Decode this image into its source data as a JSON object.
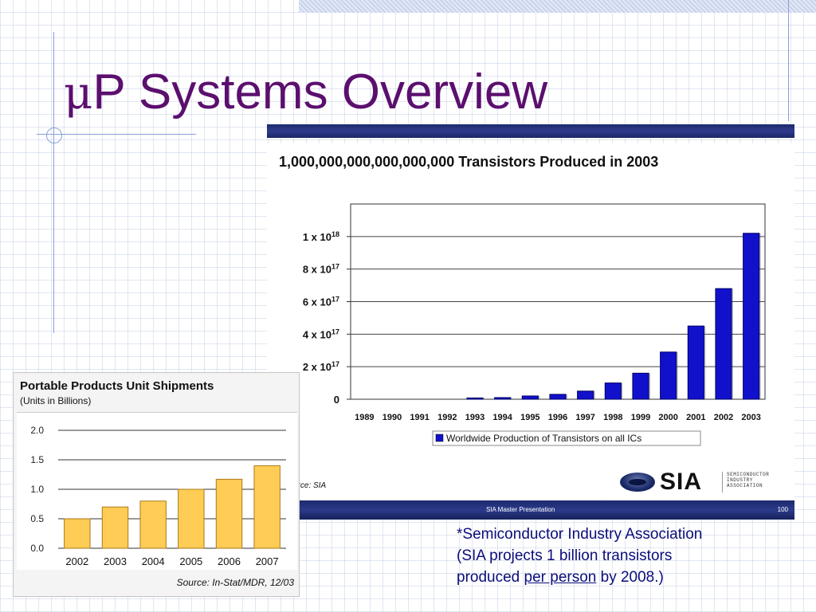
{
  "slide": {
    "title_mu": "μ",
    "title_rest": "P Systems Overview"
  },
  "sia_chart": {
    "footer_text": "SIA Master Presentation",
    "page_number": "100",
    "source": "urce:  SIA",
    "logo_word": "SIA",
    "logo_line1": "SEMICONDUCTOR",
    "logo_line2": "INDUSTRY",
    "logo_line3": "ASSOCIATION"
  },
  "portable_chart": {
    "source": "Source: In-Stat/MDR, 12/03"
  },
  "note": {
    "line1": "*Semiconductor Industry Association",
    "line2": "(SIA projects 1 billion transistors",
    "line3_pre": "produced ",
    "line3_under": "per person",
    "line3_post": " by 2008.)"
  },
  "colors": {
    "title": "#5b0f6e",
    "navy_bar": "#1f2c72",
    "sia_bar": "#1111cc",
    "portable_bar": "#ffcc55",
    "note_text": "#0a0d7a"
  },
  "chart_data": [
    {
      "type": "bar",
      "title": "1,000,000,000,000,000,000 Transistors Produced in 2003",
      "categories": [
        "1989",
        "1990",
        "1991",
        "1992",
        "1993",
        "1994",
        "1995",
        "1996",
        "1997",
        "1998",
        "1999",
        "2000",
        "2001",
        "2002",
        "2003"
      ],
      "series": [
        {
          "name": "Worldwide Production of Transistors on all ICs",
          "values": [
            0.0,
            0.0,
            0.0,
            0.0,
            0.008,
            0.01,
            0.02,
            0.03,
            0.05,
            0.1,
            0.16,
            0.29,
            0.45,
            0.68,
            1.02
          ]
        }
      ],
      "value_unit": "x 10^18",
      "ytick_values": [
        0,
        0.2,
        0.4,
        0.6,
        0.8,
        1.0
      ],
      "ytick_labels": [
        {
          "base": "0",
          "exp": ""
        },
        {
          "base": "2 x 10",
          "exp": "17"
        },
        {
          "base": "4 x 10",
          "exp": "17"
        },
        {
          "base": "6 x 10",
          "exp": "17"
        },
        {
          "base": "8 x 10",
          "exp": "17"
        },
        {
          "base": "1 x 10",
          "exp": "18"
        }
      ],
      "ylim": [
        0,
        1.2
      ],
      "legend_position": "bottom",
      "grid": true
    },
    {
      "type": "bar",
      "title": "Portable Products Unit Shipments",
      "subtitle": "(Units in Billions)",
      "categories": [
        "2002",
        "2003",
        "2004",
        "2005",
        "2006",
        "2007"
      ],
      "values": [
        0.5,
        0.7,
        0.8,
        1.0,
        1.17,
        1.4
      ],
      "ytick_labels": [
        "0.0",
        "0.5",
        "1.0",
        "1.5",
        "2.0"
      ],
      "ylim": [
        0,
        2.0
      ],
      "grid": true
    }
  ]
}
